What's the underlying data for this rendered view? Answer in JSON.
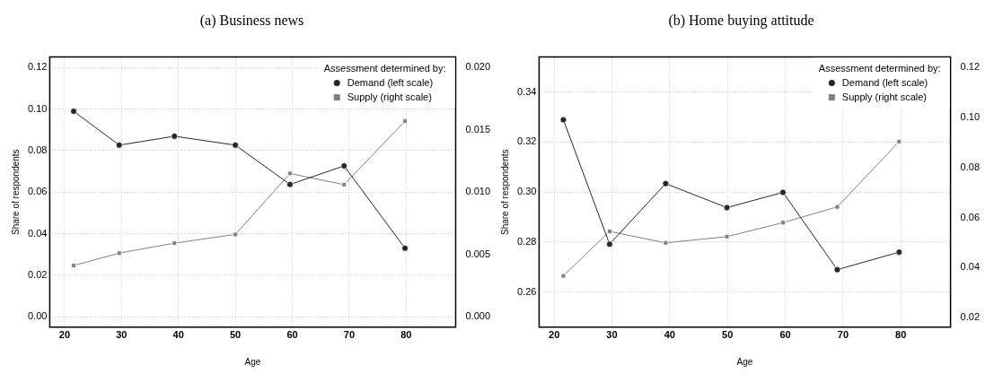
{
  "chart_data": [
    {
      "type": "line",
      "title": "(a) Business news",
      "xlabel": "Age",
      "ylabel": "Share of respondents",
      "legend_title": "Assessment determined by:",
      "legend": "top right",
      "grid": true,
      "x": [
        21.6,
        29.6,
        39.3,
        50,
        59.6,
        69.1,
        79.8
      ],
      "xlim": [
        17.4,
        88.7
      ],
      "xticks": [
        20,
        30,
        40,
        50,
        60,
        70,
        80
      ],
      "ylim": [
        -0.005,
        0.125
      ],
      "yticks": [
        {
          "value": 0,
          "label": "0.00"
        },
        0.02,
        0.04,
        0.06,
        0.08,
        {
          "value": 0.1,
          "label": "0.10"
        },
        0.12
      ],
      "y2lim": [
        -0.00085,
        0.02085
      ],
      "y2ticks": [
        {
          "value": 0,
          "label": "0.000"
        },
        0.005,
        {
          "value": 0.01,
          "label": "0.010"
        },
        0.015,
        {
          "value": 0.02,
          "label": "0.020"
        }
      ],
      "series": [
        {
          "name": "Demand (left scale)",
          "color": "#262626",
          "marker": "circle",
          "values": [
            0.0989,
            0.0826,
            0.0869,
            0.0826,
            0.0637,
            0.0726,
            0.033
          ]
        },
        {
          "name": "Supply (right scale)",
          "color": "#808080",
          "marker": "square",
          "axis": "y2",
          "values": [
            0.0041,
            0.0051,
            0.0059,
            0.0066,
            0.0115,
            0.0106,
            0.0157
          ]
        }
      ]
    },
    {
      "type": "line",
      "title": "(b) Home buying attitude",
      "xlabel": "Age",
      "ylabel": "Share of respondents",
      "legend_title": "Assessment determined by:",
      "legend": "top right",
      "grid": true,
      "x": [
        21.6,
        29.6,
        39.3,
        49.9,
        59.6,
        69,
        79.7
      ],
      "xlim": [
        17.4,
        88.6
      ],
      "xticks": [
        20,
        30,
        40,
        50,
        60,
        70,
        80
      ],
      "ylim": [
        0.246,
        0.354
      ],
      "yticks": [
        0.26,
        0.28,
        {
          "value": 0.3,
          "label": "0.30"
        },
        0.32,
        0.34
      ],
      "y2lim": [
        0.0162,
        0.1242
      ],
      "y2ticks": [
        0.02,
        0.04,
        0.06,
        0.08,
        {
          "value": 0.1,
          "label": "0.10"
        },
        0.12
      ],
      "series": [
        {
          "name": "Demand (left scale)",
          "color": "#262626",
          "marker": "circle",
          "values": [
            0.3289,
            0.2792,
            0.3034,
            0.2938,
            0.2999,
            0.269,
            0.276
          ]
        },
        {
          "name": "Supply (right scale)",
          "color": "#808080",
          "marker": "square",
          "axis": "y2",
          "values": [
            0.0367,
            0.0545,
            0.0499,
            0.0524,
            0.058,
            0.0643,
            0.0904
          ]
        }
      ]
    }
  ]
}
